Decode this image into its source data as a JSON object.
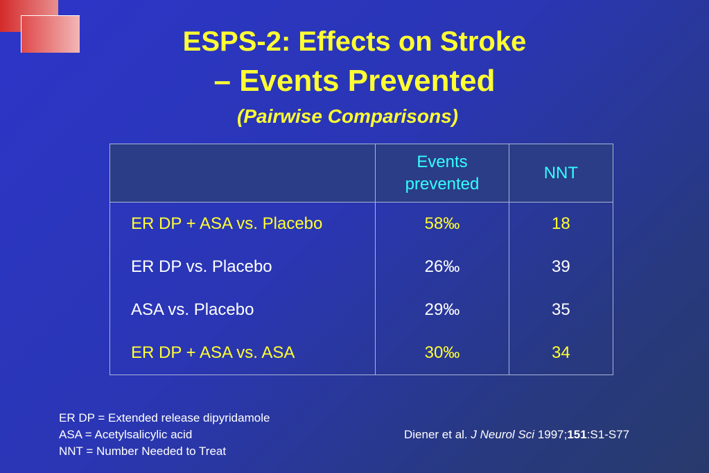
{
  "title": {
    "line1": "ESPS-2: Effects on Stroke",
    "line2": "– Events Prevented",
    "line3": "(Pairwise Comparisons)"
  },
  "table": {
    "headers": [
      "",
      "Events prevented",
      "NNT"
    ],
    "rows": [
      {
        "label": "ER DP + ASA vs. Placebo",
        "events": "58‰",
        "nnt": "18",
        "color": "#ffff33"
      },
      {
        "label": "ER DP vs. Placebo",
        "events": "26‰",
        "nnt": "39",
        "color": "#ffffff"
      },
      {
        "label": "ASA vs. Placebo",
        "events": "29‰",
        "nnt": "35",
        "color": "#ffffff"
      },
      {
        "label": "ER DP + ASA vs. ASA",
        "events": "30‰",
        "nnt": "34",
        "color": "#ffff33"
      }
    ]
  },
  "footnotes": [
    "ER DP = Extended release dipyridamole",
    "ASA = Acetylsalicylic acid",
    "NNT = Number Needed to Treat"
  ],
  "citation": {
    "authors": "Diener et al.",
    "journal": "J Neurol Sci",
    "year": "1997;",
    "volume": "151",
    "pages": ":S1-S77"
  },
  "colors": {
    "title": "#ffff33",
    "header": "#33ffff",
    "background": "#2c35c8"
  }
}
